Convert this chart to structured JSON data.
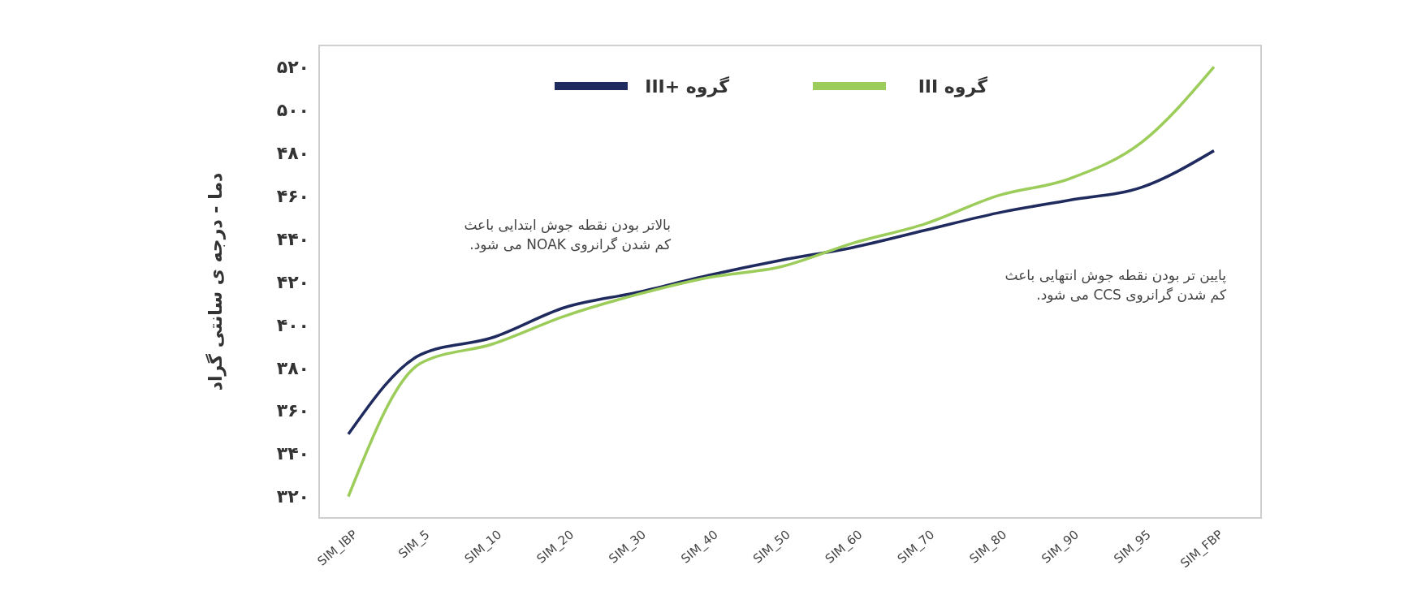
{
  "chart_data": {
    "type": "line",
    "ylabel": "دما - درجه ی سانتی گراد",
    "categories": [
      "SIM_IBP",
      "SIM_5",
      "SIM_10",
      "SIM_20",
      "SIM_30",
      "SIM_40",
      "SIM_50",
      "SIM_60",
      "SIM_70",
      "SIM_80",
      "SIM_90",
      "SIM_95",
      "SIM_FBP"
    ],
    "series": [
      {
        "name": "گروه +III",
        "color": "#1f2a5e",
        "values": [
          349,
          386,
          394,
          408,
          415,
          423,
          430,
          436,
          444,
          452,
          458,
          464,
          481
        ]
      },
      {
        "name": "گروه III",
        "color": "#9ccc5a",
        "values": [
          320,
          382,
          391,
          404,
          414,
          422,
          427,
          438,
          447,
          460,
          468,
          485,
          520
        ]
      }
    ],
    "ylim": [
      310,
      530
    ],
    "yticks": [
      {
        "value": 320,
        "label": "۳۲۰"
      },
      {
        "value": 340,
        "label": "۳۴۰"
      },
      {
        "value": 360,
        "label": "۳۶۰"
      },
      {
        "value": 380,
        "label": "۳۸۰"
      },
      {
        "value": 400,
        "label": "۴۰۰"
      },
      {
        "value": 420,
        "label": "۴۲۰"
      },
      {
        "value": 440,
        "label": "۴۴۰"
      },
      {
        "value": 460,
        "label": "۴۶۰"
      },
      {
        "value": 480,
        "label": "۴۸۰"
      },
      {
        "value": 500,
        "label": "۵۰۰"
      },
      {
        "value": 520,
        "label": "۵۲۰"
      }
    ],
    "annotations": [
      "بالاتر بودن نقطه جوش ابتدایی باعث\nکم شدن گرانروی NOAK می شود.",
      "پایین تر بودن نقطه جوش انتهایی باعث\nکم شدن گرانروی CCS می شود."
    ],
    "legend": "top",
    "grid": false,
    "marker": "none",
    "line_style": "solid"
  }
}
